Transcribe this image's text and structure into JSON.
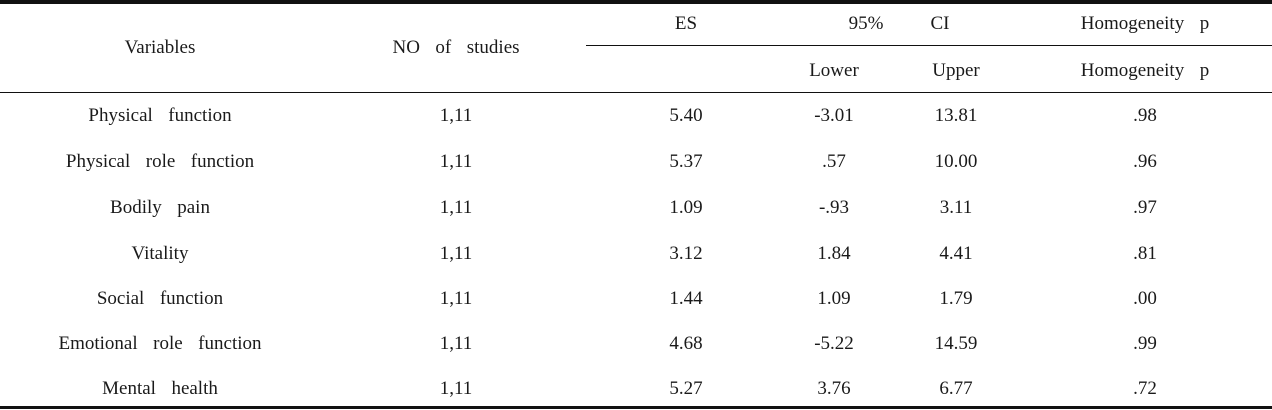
{
  "table": {
    "header": {
      "variables": "Variables",
      "no_of_studies": "NO  of  studies",
      "es": "ES",
      "ci_label": "95%",
      "ci_suffix": "CI",
      "homogeneity_top": "Homogeneity  p",
      "lower": "Lower",
      "upper": "Upper",
      "homogeneity_sub": "Homogeneity  p"
    },
    "rows": [
      {
        "variable": "Physical  function",
        "studies": "1,11",
        "es": "5.40",
        "lower": "-3.01",
        "upper": "13.81",
        "p": ".98"
      },
      {
        "variable": "Physical  role  function",
        "studies": "1,11",
        "es": "5.37",
        "lower": ".57",
        "upper": "10.00",
        "p": ".96"
      },
      {
        "variable": "Bodily  pain",
        "studies": "1,11",
        "es": "1.09",
        "lower": "-.93",
        "upper": "3.11",
        "p": ".97"
      },
      {
        "variable": "Vitality",
        "studies": "1,11",
        "es": "3.12",
        "lower": "1.84",
        "upper": "4.41",
        "p": ".81"
      },
      {
        "variable": "Social  function",
        "studies": "1,11",
        "es": "1.44",
        "lower": "1.09",
        "upper": "1.79",
        "p": ".00"
      },
      {
        "variable": "Emotional  role  function",
        "studies": "1,11",
        "es": "4.68",
        "lower": "-5.22",
        "upper": "14.59",
        "p": ".99"
      },
      {
        "variable": "Mental  health",
        "studies": "1,11",
        "es": "5.27",
        "lower": "3.76",
        "upper": "6.77",
        "p": ".72"
      }
    ]
  }
}
